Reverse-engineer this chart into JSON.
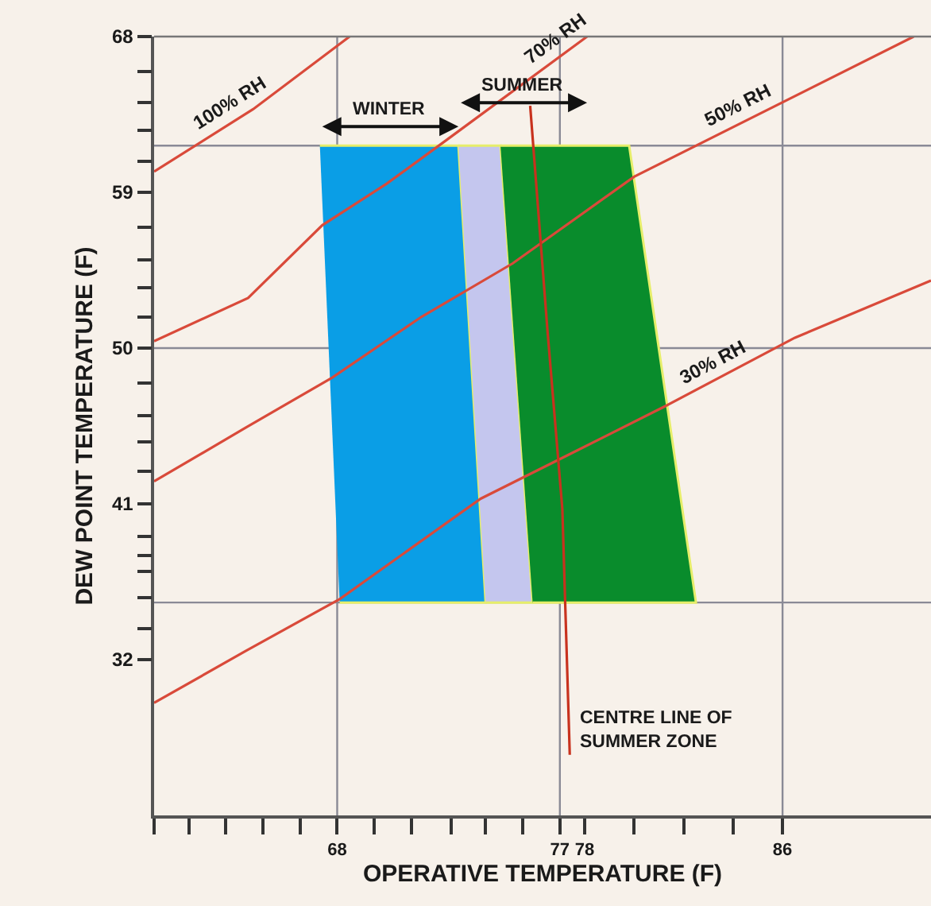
{
  "chart_data": {
    "type": "line",
    "xlabel": "OPERATIVE TEMPERATURE (F)",
    "ylabel": "DEW POINT TEMPERATURE (F)",
    "xlim": [
      60.6,
      92
    ],
    "ylim": [
      23,
      68
    ],
    "xticks": [
      {
        "value": 60.6,
        "label": null
      },
      {
        "value": 62.0,
        "label": null
      },
      {
        "value": 63.5,
        "label": null
      },
      {
        "value": 65.0,
        "label": null
      },
      {
        "value": 66.5,
        "label": null
      },
      68,
      {
        "value": 69.5,
        "label": null
      },
      {
        "value": 71.0,
        "label": null
      },
      {
        "value": 72.6,
        "label": null
      },
      {
        "value": 74.0,
        "label": null
      },
      {
        "value": 75.5,
        "label": null
      },
      77,
      78,
      {
        "value": 80.0,
        "label": null
      },
      {
        "value": 82.0,
        "label": null
      },
      {
        "value": 84.0,
        "label": null
      },
      86
    ],
    "yticks": [
      32,
      {
        "value": 33.8,
        "label": null
      },
      {
        "value": 35.6,
        "label": null
      },
      {
        "value": 37.1,
        "label": null
      },
      {
        "value": 38.0,
        "label": null
      },
      {
        "value": 39.1,
        "label": null
      },
      41,
      {
        "value": 42.9,
        "label": null
      },
      {
        "value": 44.6,
        "label": null
      },
      {
        "value": 46.1,
        "label": null
      },
      {
        "value": 48.0,
        "label": null
      },
      50,
      {
        "value": 51.8,
        "label": null
      },
      {
        "value": 53.5,
        "label": null
      },
      {
        "value": 55.1,
        "label": null
      },
      {
        "value": 57.0,
        "label": null
      },
      59,
      {
        "value": 60.8,
        "label": null
      },
      {
        "value": 62.6,
        "label": null
      },
      {
        "value": 64.2,
        "label": null
      },
      {
        "value": 66.0,
        "label": null
      },
      68
    ],
    "series": [
      {
        "type": "area",
        "color": "#0a9ee6",
        "x": [
          67.3,
          72.9,
          74.0,
          68.1
        ],
        "values": [
          61.7,
          61.7,
          35.3,
          35.3
        ]
      },
      {
        "type": "area",
        "color": "#c4c6ee",
        "x": [
          72.9,
          74.6,
          75.9,
          74.0
        ],
        "values": [
          61.7,
          61.7,
          35.3,
          35.3
        ]
      },
      {
        "type": "area",
        "color": "#098c2c",
        "x": [
          74.6,
          79.8,
          82.5,
          75.9
        ],
        "values": [
          61.7,
          61.7,
          35.3,
          35.3
        ]
      },
      {
        "name": "100% RH",
        "color": "#d94a3a",
        "x": [
          60.6,
          64.6,
          68.5
        ],
        "values": [
          60.2,
          63.8,
          68.0
        ]
      },
      {
        "name": "70% RH",
        "color": "#d94a3a",
        "x": [
          60.6,
          64.4,
          67.4,
          70.0,
          72.4,
          78.1
        ],
        "values": [
          50.4,
          52.9,
          57.1,
          59.5,
          62.0,
          68.0
        ]
      },
      {
        "name": "50% RH",
        "color": "#d94a3a",
        "x": [
          60.6,
          64.3,
          67.8,
          71.4,
          75.1,
          80.0,
          91.3
        ],
        "values": [
          42.3,
          45.4,
          48.3,
          51.8,
          54.9,
          59.9,
          68.0
        ]
      },
      {
        "name": "30% RH",
        "color": "#d94a3a",
        "x": [
          60.6,
          64.3,
          68.1,
          73.8,
          77.3,
          81.2,
          86.5,
          92.0
        ],
        "values": [
          29.5,
          32.5,
          35.5,
          41.3,
          43.8,
          46.6,
          50.6,
          53.9
        ]
      },
      {
        "color": "#c8321e",
        "x": [
          75.8,
          76.5,
          77.1,
          77.4
        ],
        "values": [
          64.0,
          51.0,
          40.7,
          26.5
        ]
      }
    ],
    "ref_lines": [
      {
        "axis": "x",
        "value": 68,
        "color": "#8a8a96"
      },
      {
        "axis": "x",
        "value": 77,
        "color": "#8a8a96"
      },
      {
        "axis": "x",
        "value": 86,
        "color": "#8a8a96"
      },
      {
        "axis": "y",
        "value": 61.7,
        "color": "#8a8a96"
      },
      {
        "axis": "y",
        "value": 50,
        "color": "#8a8a96"
      },
      {
        "axis": "y",
        "value": 35.3,
        "color": "#8a8a96"
      }
    ],
    "annotations": [
      "WINTER",
      "SUMMER",
      {
        "text": "CENTRE LINE OF\nSUMMER ZONE",
        "x": 77.4,
        "y": 26.5
      }
    ]
  }
}
